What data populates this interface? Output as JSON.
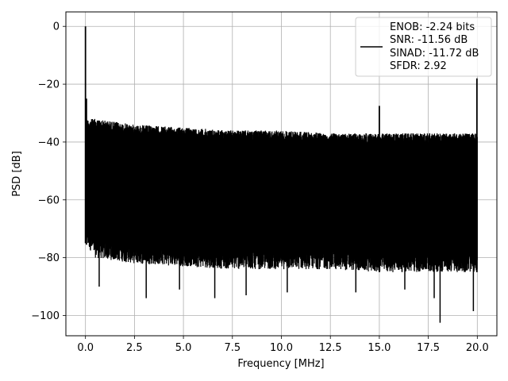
{
  "chart_data": {
    "type": "line",
    "title": "",
    "xlabel": "Frequency [MHz]",
    "ylabel": "PSD [dB]",
    "xlim": [
      -1.0,
      21.0
    ],
    "ylim": [
      -107,
      5
    ],
    "xticks": [
      0.0,
      2.5,
      5.0,
      7.5,
      10.0,
      12.5,
      15.0,
      17.5,
      20.0
    ],
    "xtick_labels": [
      "0.0",
      "2.5",
      "5.0",
      "7.5",
      "10.0",
      "12.5",
      "15.0",
      "17.5",
      "20.0"
    ],
    "yticks": [
      0,
      -20,
      -40,
      -60,
      -80,
      -100
    ],
    "ytick_labels": [
      "0",
      "−20",
      "−40",
      "−60",
      "−80",
      "−100"
    ],
    "grid": true,
    "legend_position": "top-right",
    "series": [
      {
        "legend_lines": [
          "ENOB: -2.24 bits",
          "SNR: -11.56 dB",
          "SINAD: -11.72 dB",
          "SFDR: 2.92"
        ],
        "color": "#000000",
        "noise_envelope": {
          "x": [
            0.0,
            0.5,
            2.5,
            5.0,
            7.5,
            10.0,
            12.5,
            15.0,
            17.5,
            20.0
          ],
          "upper": [
            -32,
            -32,
            -34,
            -35,
            -36,
            -36,
            -37,
            -37,
            -37,
            -37
          ],
          "lower": [
            -75,
            -80,
            -82,
            -83,
            -84,
            -84,
            -84,
            -85,
            -85,
            -85
          ]
        },
        "peaks": [
          {
            "x": 0.0,
            "y": 0
          },
          {
            "x": 0.05,
            "y": -25
          },
          {
            "x": 15.0,
            "y": -27.5
          },
          {
            "x": 19.98,
            "y": -18
          }
        ],
        "deep_dips": [
          {
            "x": 0.7,
            "y": -90
          },
          {
            "x": 3.1,
            "y": -94
          },
          {
            "x": 4.8,
            "y": -91
          },
          {
            "x": 6.6,
            "y": -94
          },
          {
            "x": 8.2,
            "y": -93
          },
          {
            "x": 10.3,
            "y": -92
          },
          {
            "x": 13.8,
            "y": -92
          },
          {
            "x": 16.3,
            "y": -91
          },
          {
            "x": 17.8,
            "y": -94
          },
          {
            "x": 18.1,
            "y": -102.5
          },
          {
            "x": 19.8,
            "y": -98.5
          }
        ]
      }
    ]
  }
}
